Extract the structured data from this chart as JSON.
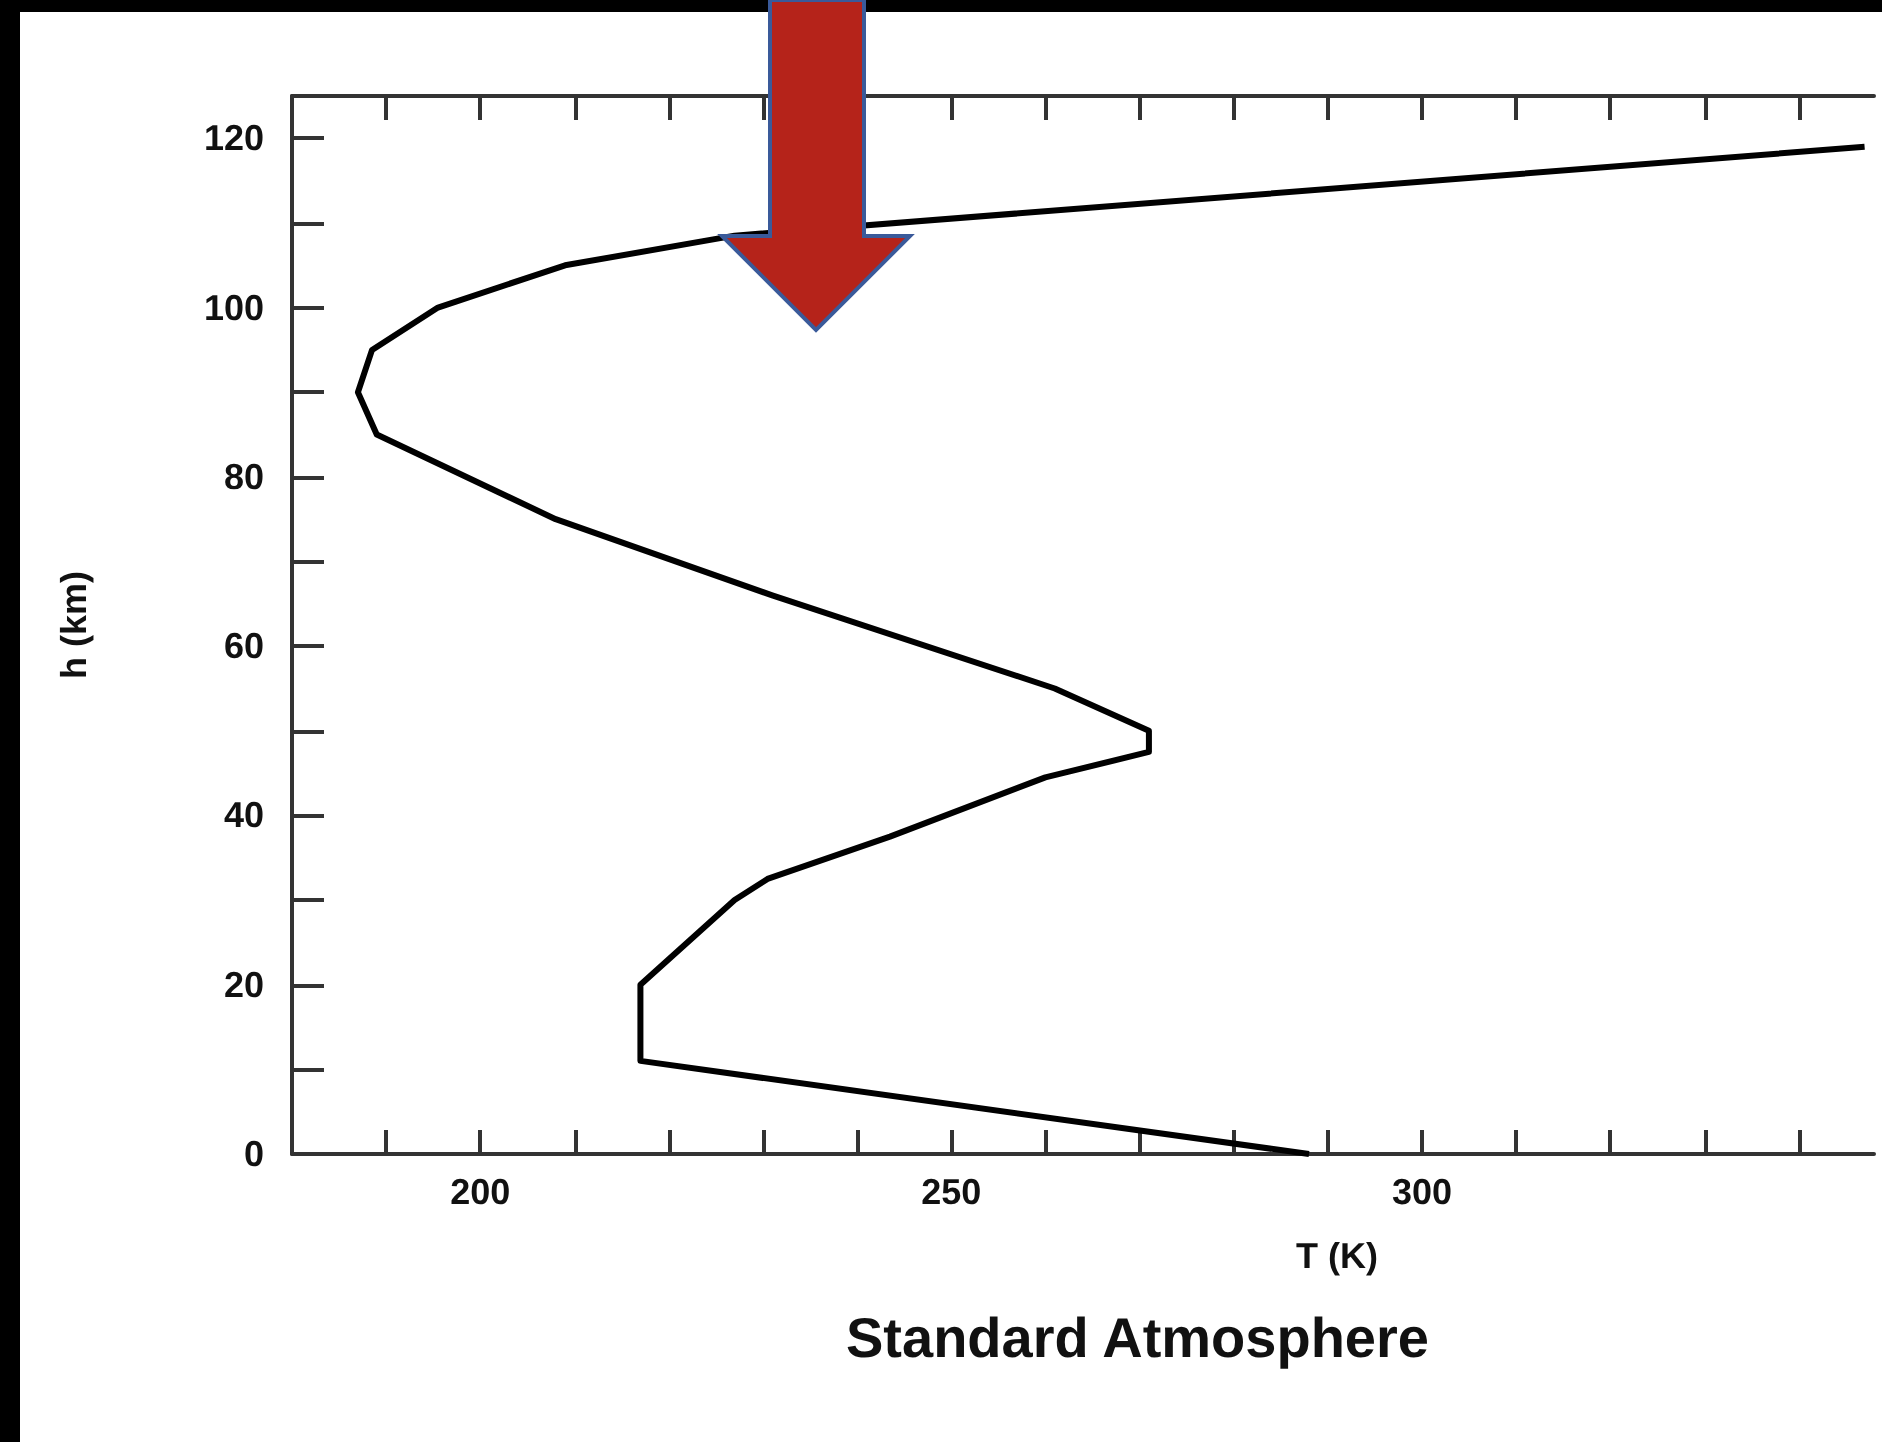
{
  "chart_data": {
    "type": "line",
    "title": "Standard Atmosphere",
    "xlabel": "T (K)",
    "ylabel": "h (km)",
    "x": [
      288,
      217,
      217,
      227,
      230.5,
      243.5,
      260,
      271,
      271,
      261,
      231,
      208,
      189,
      187,
      188.5,
      195.5,
      209,
      227,
      347
    ],
    "values": [
      0,
      11,
      20,
      30,
      32.5,
      37.5,
      44.5,
      47.5,
      50,
      55,
      66,
      75,
      85,
      90,
      95,
      100,
      105,
      108.5,
      119
    ],
    "color": "#000000",
    "marker": "none",
    "line_style": "solid",
    "grid": false,
    "xlim": [
      180,
      348
    ],
    "ylim": [
      0,
      125
    ],
    "xticks": [
      {
        "value": 190,
        "label": null
      },
      200,
      {
        "value": 210,
        "label": null
      },
      {
        "value": 220,
        "label": null
      },
      {
        "value": 230,
        "label": null
      },
      {
        "value": 240,
        "label": null
      },
      250,
      {
        "value": 260,
        "label": null
      },
      {
        "value": 270,
        "label": null
      },
      {
        "value": 280,
        "label": null
      },
      {
        "value": 290,
        "label": null
      },
      300,
      {
        "value": 310,
        "label": null
      },
      {
        "value": 320,
        "label": null
      },
      {
        "value": 330,
        "label": null
      },
      {
        "value": 340,
        "label": null
      }
    ],
    "yticks": [
      0,
      {
        "value": 10,
        "label": null
      },
      20,
      {
        "value": 30,
        "label": null
      },
      40,
      {
        "value": 50,
        "label": null
      },
      60,
      {
        "value": 70,
        "label": null
      },
      80,
      {
        "value": 90,
        "label": null
      },
      100,
      {
        "value": 110,
        "label": null
      },
      120
    ]
  }
}
